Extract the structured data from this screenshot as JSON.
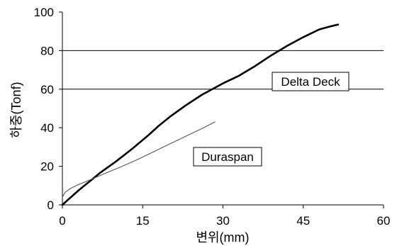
{
  "chart_data": {
    "type": "line",
    "xlabel": "변위(mm)",
    "ylabel": "하중(Tonf)",
    "xlim": [
      0,
      60
    ],
    "ylim": [
      0,
      100
    ],
    "x_ticks": [
      "0",
      "15",
      "30",
      "45",
      "60"
    ],
    "y_ticks": [
      "0",
      "20",
      "40",
      "60",
      "80",
      "100"
    ],
    "gridlines_y": [
      60,
      80
    ],
    "series": [
      {
        "name": "Delta Deck",
        "color": "#000000",
        "x": [
          0,
          1,
          3,
          5,
          7,
          10,
          13,
          16,
          18,
          20,
          23,
          26,
          30,
          33,
          36,
          39,
          42,
          45,
          48,
          50,
          51.5
        ],
        "y": [
          0,
          2.5,
          7.5,
          12,
          16.5,
          22.5,
          29,
          36,
          41,
          45.5,
          51.5,
          57,
          63,
          67,
          72,
          77.5,
          82.5,
          87,
          91,
          92.5,
          93.5
        ]
      },
      {
        "name": "Duraspan",
        "color": "#555555",
        "x": [
          0,
          0.5,
          1.5,
          3,
          5,
          7,
          9,
          11,
          14,
          17,
          20,
          23,
          26,
          28.5
        ],
        "y": [
          4,
          6.5,
          8.5,
          10.5,
          12.8,
          15.2,
          17.5,
          19.8,
          23.5,
          27.5,
          31.5,
          35.5,
          39.5,
          43
        ]
      }
    ]
  }
}
